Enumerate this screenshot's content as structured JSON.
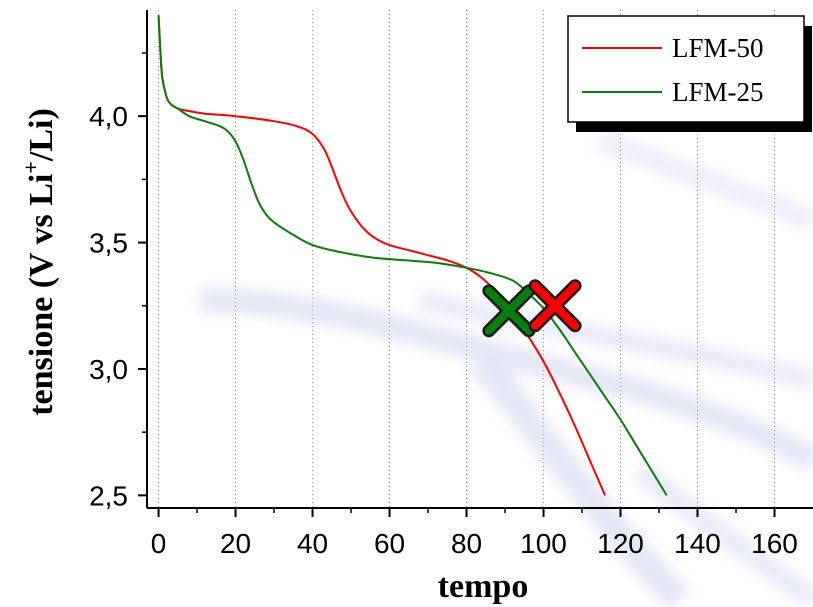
{
  "chart_data": {
    "type": "line",
    "xlabel": "tempo",
    "ylabel_main": "tensione (V vs Li",
    "ylabel_sup": "+",
    "ylabel_end": "/Li)",
    "xlim": [
      -3,
      170
    ],
    "ylim": [
      2.45,
      4.42
    ],
    "x_ticks": [
      0,
      20,
      40,
      60,
      80,
      100,
      120,
      140,
      160
    ],
    "x_tick_labels": [
      "0",
      "20",
      "40",
      "60",
      "80",
      "100",
      "120",
      "140",
      "160"
    ],
    "y_ticks": [
      2.5,
      3.0,
      3.5,
      4.0
    ],
    "y_tick_labels": [
      "2,5",
      "3,0",
      "3,5",
      "4,0"
    ],
    "grid": "vertical dotted",
    "legend_position": "top-right",
    "series": [
      {
        "name": "LFM-50",
        "color": "#ff0000",
        "x": [
          0,
          0.5,
          1,
          2,
          3,
          5,
          8,
          12,
          20,
          30,
          36,
          40,
          43,
          45,
          47,
          49,
          51,
          53,
          56,
          60,
          65,
          70,
          75,
          80,
          84,
          88,
          92,
          96,
          100,
          104,
          108,
          112,
          116
        ],
        "y": [
          4.4,
          4.25,
          4.15,
          4.08,
          4.05,
          4.03,
          4.02,
          4.01,
          4.0,
          3.98,
          3.96,
          3.93,
          3.87,
          3.8,
          3.72,
          3.65,
          3.6,
          3.56,
          3.52,
          3.49,
          3.47,
          3.45,
          3.43,
          3.4,
          3.36,
          3.3,
          3.22,
          3.13,
          3.03,
          2.91,
          2.78,
          2.64,
          2.5
        ]
      },
      {
        "name": "LFM-25",
        "color": "#0a7d0a",
        "x": [
          0,
          0.5,
          1,
          2,
          3,
          5,
          8,
          12,
          16,
          18,
          20,
          22,
          24,
          26,
          28,
          30,
          34,
          40,
          48,
          56,
          64,
          72,
          80,
          86,
          92,
          96,
          100,
          104,
          108,
          112,
          116,
          120,
          124,
          128,
          132
        ],
        "y": [
          4.4,
          4.25,
          4.15,
          4.08,
          4.05,
          4.03,
          4.0,
          3.98,
          3.96,
          3.94,
          3.9,
          3.83,
          3.74,
          3.66,
          3.61,
          3.58,
          3.54,
          3.49,
          3.46,
          3.44,
          3.43,
          3.42,
          3.4,
          3.38,
          3.35,
          3.3,
          3.24,
          3.16,
          3.07,
          2.98,
          2.89,
          2.8,
          2.7,
          2.6,
          2.5
        ]
      }
    ],
    "markers": [
      {
        "name": "green-x",
        "x": 91,
        "y": 3.23,
        "color": "#0a7d0a"
      },
      {
        "name": "red-x",
        "x": 103,
        "y": 3.25,
        "color": "#ff0000"
      }
    ]
  }
}
